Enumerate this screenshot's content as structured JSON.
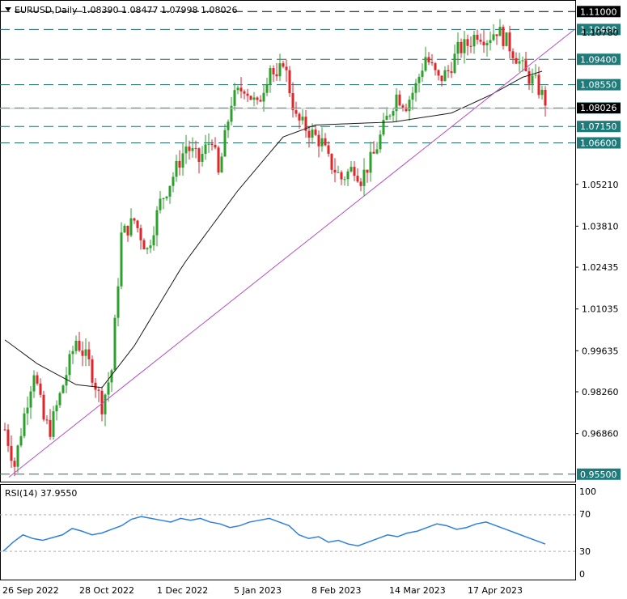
{
  "header": {
    "symbol_label": "EURUSD,Daily",
    "ohlc_text": "1.08390 1.08477 1.07998 1.08026"
  },
  "rsi": {
    "label": "RSI(14) 37.9550",
    "levels": [
      "100",
      "70",
      "30",
      "0"
    ]
  },
  "x_axis_labels": [
    "26 Sep 2022",
    "28 Oct 2022",
    "1 Dec 2022",
    "5 Jan 2023",
    "8 Feb 2023",
    "14 Mar 2023",
    "17 Apr 2023"
  ],
  "price_scale": [
    "1.05210",
    "1.03810",
    "1.02435",
    "1.01035",
    "0.99635",
    "0.98260",
    "0.96860"
  ],
  "horizontal_levels": [
    {
      "label": "1.11000",
      "value": 1.11,
      "style": "black"
    },
    {
      "label": "1.10400",
      "value": 1.104,
      "style": "teal"
    },
    {
      "label": "1.09400",
      "value": 1.094,
      "style": "teal"
    },
    {
      "label": "1.08550",
      "value": 1.0855,
      "style": "teal"
    },
    {
      "label": "1.07770",
      "value": 1.0777,
      "style": "teal"
    },
    {
      "label": "1.07150",
      "value": 1.0715,
      "style": "teal"
    },
    {
      "label": "1.06600",
      "value": 1.066,
      "style": "teal"
    },
    {
      "label": "0.95500",
      "value": 0.955,
      "style": "teal"
    }
  ],
  "hidden_label": "1.10780",
  "current_price_label": "1.08026",
  "colors": {
    "bull": "#2ca02c",
    "bear": "#e0262b",
    "level_teal": "#1f6f6f",
    "label_teal_bg": "#1f7a7a",
    "trendline": "#b44fc4",
    "ma": "#1a1a1a",
    "rsi_line": "#2f7fdc"
  },
  "chart_data": {
    "type": "candlestick",
    "symbol": "EURUSD",
    "timeframe": "Daily",
    "x": [
      "26 Sep 2022",
      "28 Oct 2022",
      "1 Dec 2022",
      "5 Jan 2023",
      "8 Feb 2023",
      "14 Mar 2023",
      "17 Apr 2023"
    ],
    "y_range": [
      0.9525,
      1.1136
    ],
    "last": {
      "open": 1.0839,
      "high": 1.08477,
      "low": 1.07998,
      "close": 1.08026
    },
    "close_path": [
      [
        0,
        0.97
      ],
      [
        3,
        0.958
      ],
      [
        6,
        0.975
      ],
      [
        9,
        0.99
      ],
      [
        12,
        0.973
      ],
      [
        14,
        0.97
      ],
      [
        18,
        0.985
      ],
      [
        22,
        1.0
      ],
      [
        26,
        0.992
      ],
      [
        30,
        0.978
      ],
      [
        33,
        0.99
      ],
      [
        36,
        1.035
      ],
      [
        40,
        1.04
      ],
      [
        44,
        1.03
      ],
      [
        48,
        1.046
      ],
      [
        52,
        1.055
      ],
      [
        56,
        1.065
      ],
      [
        60,
        1.06
      ],
      [
        64,
        1.068
      ],
      [
        66,
        1.055
      ],
      [
        70,
        1.08
      ],
      [
        74,
        1.085
      ],
      [
        78,
        1.078
      ],
      [
        82,
        1.092
      ],
      [
        84,
        1.086
      ],
      [
        86,
        1.094
      ],
      [
        88,
        1.084
      ],
      [
        90,
        1.074
      ],
      [
        94,
        1.07
      ],
      [
        98,
        1.066
      ],
      [
        100,
        1.06
      ],
      [
        104,
        1.054
      ],
      [
        108,
        1.058
      ],
      [
        110,
        1.054
      ],
      [
        114,
        1.062
      ],
      [
        118,
        1.074
      ],
      [
        121,
        1.082
      ],
      [
        124,
        1.079
      ],
      [
        127,
        1.085
      ],
      [
        130,
        1.095
      ],
      [
        134,
        1.087
      ],
      [
        137,
        1.09
      ],
      [
        140,
        1.097
      ],
      [
        143,
        1.099
      ],
      [
        146,
        1.103
      ],
      [
        149,
        1.101
      ],
      [
        152,
        1.104
      ],
      [
        155,
        1.1
      ],
      [
        158,
        1.095
      ],
      [
        161,
        1.089
      ],
      [
        164,
        1.086
      ],
      [
        167,
        1.08
      ]
    ],
    "ma_path": [
      [
        0,
        1.0
      ],
      [
        10,
        0.992
      ],
      [
        22,
        0.985
      ],
      [
        30,
        0.984
      ],
      [
        40,
        0.998
      ],
      [
        55,
        1.025
      ],
      [
        72,
        1.05
      ],
      [
        86,
        1.068
      ],
      [
        96,
        1.072
      ],
      [
        120,
        1.073
      ],
      [
        138,
        1.076
      ],
      [
        150,
        1.082
      ],
      [
        160,
        1.088
      ],
      [
        166,
        1.09
      ]
    ],
    "trendline": [
      [
        0,
        0.954
      ],
      [
        176,
        1.104
      ]
    ],
    "rsi": {
      "levels": [
        70,
        30
      ],
      "values": [
        30,
        40,
        48,
        44,
        42,
        45,
        48,
        55,
        52,
        48,
        50,
        54,
        58,
        65,
        68,
        66,
        64,
        62,
        66,
        64,
        66,
        62,
        60,
        56,
        58,
        62,
        64,
        66,
        62,
        58,
        48,
        44,
        46,
        40,
        42,
        38,
        36,
        40,
        44,
        48,
        46,
        50,
        52,
        56,
        60,
        58,
        54,
        56,
        60,
        62,
        58,
        54,
        50,
        46,
        42,
        38
      ]
    }
  }
}
